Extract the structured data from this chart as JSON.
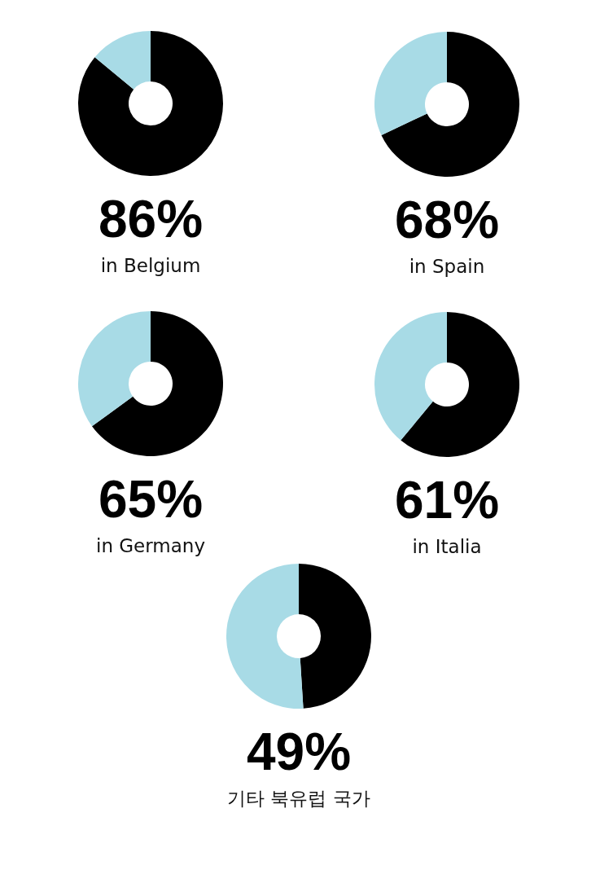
{
  "chart_data": [
    {
      "type": "donut",
      "title": "in Belgium",
      "categories": [
        null,
        null
      ],
      "values": [
        86,
        14
      ],
      "colors": [
        "#000000",
        "#a8dbe6"
      ],
      "value_labels": [
        "86%",
        null
      ]
    },
    {
      "type": "donut",
      "title": "in Spain",
      "categories": [
        null,
        null
      ],
      "values": [
        68,
        32
      ],
      "colors": [
        "#000000",
        "#a8dbe6"
      ],
      "value_labels": [
        "68%",
        null
      ]
    },
    {
      "type": "donut",
      "title": "in Germany",
      "categories": [
        null,
        null
      ],
      "values": [
        65,
        35
      ],
      "colors": [
        "#000000",
        "#a8dbe6"
      ],
      "value_labels": [
        "65%",
        null
      ]
    },
    {
      "type": "donut",
      "title": "in Italia",
      "categories": [
        null,
        null
      ],
      "values": [
        61,
        39
      ],
      "colors": [
        "#000000",
        "#a8dbe6"
      ],
      "value_labels": [
        "61%",
        null
      ]
    },
    {
      "type": "donut",
      "title": "기타 북유럽 국가",
      "categories": [
        null,
        null
      ],
      "values": [
        49,
        51
      ],
      "colors": [
        "#000000",
        "#a8dbe6"
      ],
      "value_labels": [
        "49%",
        null
      ]
    }
  ]
}
